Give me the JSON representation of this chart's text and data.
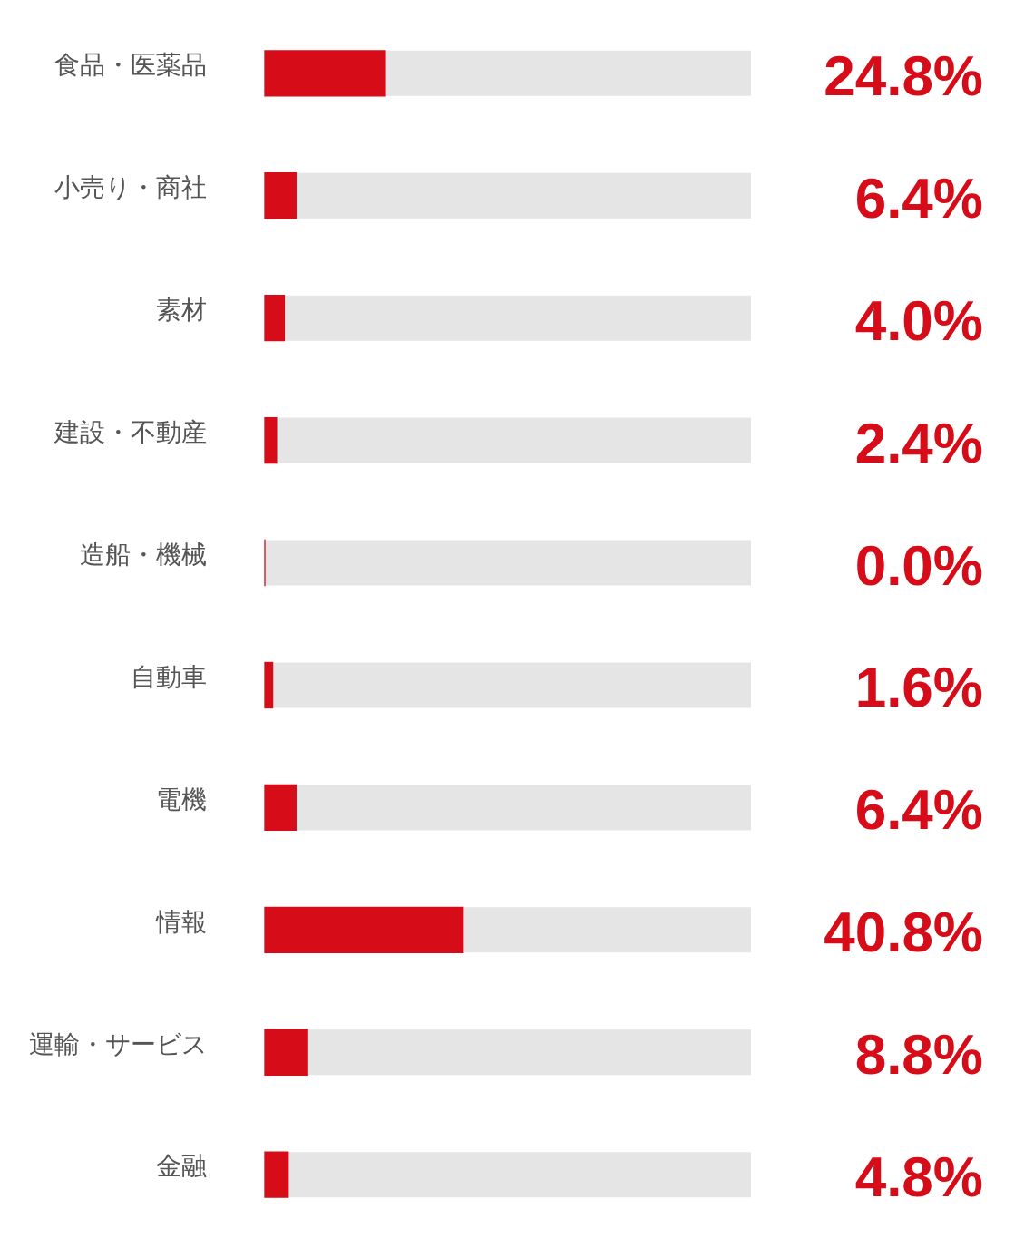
{
  "chart_data": {
    "type": "bar",
    "orientation": "horizontal",
    "categories": [
      "食品・医薬品",
      "小売り・商社",
      "素材",
      "建設・不動産",
      "造船・機械",
      "自動車",
      "電機",
      "情報",
      "運輸・サービス",
      "金融"
    ],
    "values": [
      24.8,
      6.4,
      4.0,
      2.4,
      0.0,
      1.6,
      6.4,
      40.8,
      8.8,
      4.8
    ],
    "value_labels": [
      "24.8%",
      "6.4%",
      "4.0%",
      "2.4%",
      "0.0%",
      "1.6%",
      "6.4%",
      "40.8%",
      "8.8%",
      "4.8%"
    ],
    "color": "#d70c19",
    "xlim": [
      0,
      100
    ],
    "tick_labels": "y"
  }
}
